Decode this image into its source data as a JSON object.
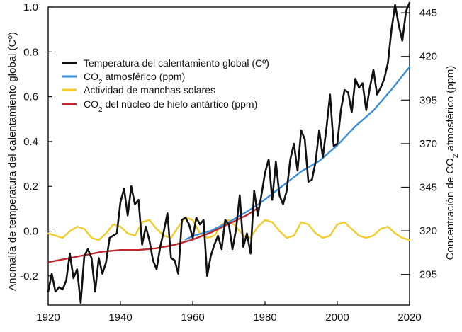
{
  "chart_data": {
    "type": "line",
    "title": "",
    "xlabel": "",
    "ylabel": "Anomalía de temperatura del calentamiento global (Cº)",
    "ylabel_right_prefix": "Concentración de CO",
    "ylabel_right_sub": "2",
    "ylabel_right_suffix": " atmosférico (ppm)",
    "xlim": [
      1920,
      2020
    ],
    "ylim": [
      -0.33,
      1.0
    ],
    "ylim_right": [
      277.4,
      448.3
    ],
    "x_ticks": [
      1920,
      1940,
      1960,
      1980,
      2000,
      2020
    ],
    "y_ticks": [
      -0.2,
      0.0,
      0.2,
      0.4,
      0.6,
      0.8,
      1.0
    ],
    "y_tick_labels": [
      "-0.2",
      "0.0",
      "0.2",
      "0.4",
      "0.6",
      "0.8",
      "1.0"
    ],
    "y_right_ticks": [
      295,
      320,
      345,
      370,
      395,
      420,
      445
    ],
    "grid": false,
    "legend_position": "top-left",
    "series": [
      {
        "name": "Temperatura del calentamiento global (Cº)",
        "legend_prefix": "Temperatura del calentamiento global (Cº)",
        "legend_sub": "",
        "legend_suffix": "",
        "color": "#111111",
        "axis": "left",
        "x": [
          1920,
          1921,
          1922,
          1923,
          1924,
          1925,
          1926,
          1927,
          1928,
          1929,
          1930,
          1931,
          1932,
          1933,
          1934,
          1935,
          1936,
          1937,
          1938,
          1939,
          1940,
          1941,
          1942,
          1943,
          1944,
          1945,
          1946,
          1947,
          1948,
          1949,
          1950,
          1951,
          1952,
          1953,
          1954,
          1955,
          1956,
          1957,
          1958,
          1959,
          1960,
          1961,
          1962,
          1963,
          1964,
          1965,
          1966,
          1967,
          1968,
          1969,
          1970,
          1971,
          1972,
          1973,
          1974,
          1975,
          1976,
          1977,
          1978,
          1979,
          1980,
          1981,
          1982,
          1983,
          1984,
          1985,
          1986,
          1987,
          1988,
          1989,
          1990,
          1991,
          1992,
          1993,
          1994,
          1995,
          1996,
          1997,
          1998,
          1999,
          2000,
          2001,
          2002,
          2003,
          2004,
          2005,
          2006,
          2007,
          2008,
          2009,
          2010,
          2011,
          2012,
          2013,
          2014,
          2015,
          2016,
          2017,
          2018,
          2019,
          2020
        ],
        "values": [
          -0.27,
          -0.19,
          -0.27,
          -0.25,
          -0.26,
          -0.22,
          -0.1,
          -0.21,
          -0.17,
          -0.32,
          -0.11,
          -0.08,
          -0.12,
          -0.27,
          -0.12,
          -0.19,
          -0.14,
          -0.03,
          -0.02,
          -0.01,
          0.13,
          0.19,
          0.07,
          0.2,
          0.12,
          0.14,
          -0.06,
          0.02,
          -0.04,
          -0.13,
          -0.17,
          -0.07,
          0.0,
          0.08,
          -0.12,
          -0.13,
          -0.19,
          0.05,
          0.06,
          0.03,
          -0.03,
          0.06,
          0.03,
          0.05,
          -0.2,
          -0.11,
          -0.06,
          -0.02,
          -0.08,
          0.05,
          0.03,
          -0.08,
          0.01,
          0.16,
          -0.07,
          -0.01,
          -0.1,
          0.18,
          0.07,
          0.16,
          0.26,
          0.32,
          0.14,
          0.31,
          0.16,
          0.12,
          0.18,
          0.32,
          0.39,
          0.27,
          0.45,
          0.41,
          0.22,
          0.23,
          0.31,
          0.45,
          0.33,
          0.46,
          0.61,
          0.38,
          0.39,
          0.54,
          0.63,
          0.62,
          0.53,
          0.68,
          0.64,
          0.66,
          0.54,
          0.64,
          0.72,
          0.61,
          0.64,
          0.68,
          0.75,
          0.9,
          1.01,
          0.92,
          0.85,
          0.98,
          1.02
        ]
      },
      {
        "name": "CO2 atmosférico (ppm)",
        "legend_prefix": "CO",
        "legend_sub": "2",
        "legend_suffix": " atmosférico (ppm)",
        "color": "#3a8fdc",
        "axis": "right",
        "x": [
          1958,
          1960,
          1965,
          1970,
          1975,
          1978,
          1980,
          1985,
          1990,
          1995,
          2000,
          2005,
          2010,
          2015,
          2020
        ],
        "values": [
          315,
          317,
          320,
          325,
          331,
          335,
          338,
          346,
          354,
          360,
          369,
          380,
          389,
          401,
          414
        ]
      },
      {
        "name": "Actividad de manchas solares",
        "legend_prefix": "Actividad de manchas solares",
        "legend_sub": "",
        "legend_suffix": "",
        "color": "#f2cc2a",
        "axis": "left",
        "x": [
          1920,
          1922,
          1924,
          1926,
          1928,
          1930,
          1932,
          1934,
          1936,
          1938,
          1940,
          1942,
          1944,
          1946,
          1948,
          1950,
          1952,
          1954,
          1956,
          1958,
          1960,
          1962,
          1964,
          1966,
          1968,
          1970,
          1972,
          1974,
          1976,
          1978,
          1980,
          1982,
          1984,
          1986,
          1988,
          1990,
          1992,
          1994,
          1996,
          1998,
          2000,
          2002,
          2004,
          2006,
          2008,
          2010,
          2012,
          2014,
          2016,
          2018,
          2020
        ],
        "values": [
          -0.01,
          -0.02,
          -0.03,
          0.0,
          0.02,
          0.01,
          -0.03,
          -0.04,
          -0.01,
          0.03,
          0.02,
          -0.01,
          -0.02,
          0.04,
          0.05,
          0.01,
          -0.02,
          -0.03,
          0.02,
          0.06,
          0.05,
          -0.01,
          -0.03,
          -0.02,
          0.03,
          0.05,
          0.02,
          -0.02,
          -0.03,
          0.02,
          0.05,
          0.04,
          0.0,
          -0.03,
          -0.02,
          0.04,
          0.03,
          -0.01,
          -0.03,
          -0.02,
          0.03,
          0.04,
          0.01,
          -0.02,
          -0.03,
          -0.02,
          0.01,
          0.02,
          -0.01,
          -0.03,
          -0.04
        ]
      },
      {
        "name": "CO2 del núcleo de hielo antártico (ppm)",
        "legend_prefix": "CO",
        "legend_sub": "2",
        "legend_suffix": " del núcleo de hielo antártico (ppm)",
        "color": "#c0262d",
        "axis": "right",
        "x": [
          1920,
          1925,
          1930,
          1935,
          1940,
          1945,
          1950,
          1955,
          1960,
          1965,
          1970,
          1975,
          1978
        ],
        "values": [
          302,
          304,
          306,
          308,
          309,
          309,
          310,
          312,
          315,
          319,
          324,
          329,
          333
        ]
      }
    ]
  }
}
